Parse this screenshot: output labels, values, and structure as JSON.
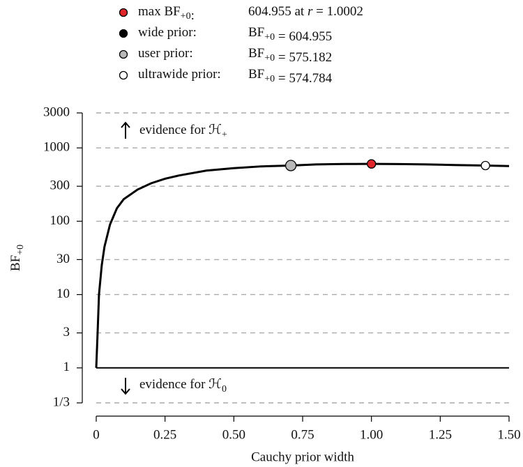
{
  "chart_data": {
    "type": "line",
    "x_label": "Cauchy prior width",
    "y_label": [
      {
        "text": "BF"
      },
      {
        "sub": "+0"
      }
    ],
    "log_y": true,
    "grid": true,
    "reference_line": 1,
    "xlim": [
      0,
      1.5
    ],
    "xticks": [
      0,
      {
        "value": 0.25,
        "label": "0.25"
      },
      {
        "value": 0.5,
        "label": "0.50"
      },
      0.75,
      {
        "value": 1,
        "label": "1.00"
      },
      1.25,
      {
        "value": 1.5,
        "label": "1.50"
      }
    ],
    "ylim": [
      0.3333333,
      3000
    ],
    "yticks": [
      3000,
      1000,
      300,
      100,
      30,
      10,
      3,
      1,
      {
        "value": 0.3333333,
        "label": "1/3"
      }
    ],
    "x": [
      0,
      0.005,
      0.01,
      0.02,
      0.03,
      0.05,
      0.075,
      0.1,
      0.15,
      0.2,
      0.25,
      0.3,
      0.4,
      0.5,
      0.6,
      0.7071,
      0.8,
      0.9,
      1.0002,
      1.1,
      1.2,
      1.3,
      1.4142,
      1.5
    ],
    "series": [
      {
        "color": "#000000",
        "values": [
          1,
          3,
          10,
          25,
          45,
          90,
          150,
          200,
          270,
          330,
          380,
          420,
          490,
          530,
          560,
          575.182,
          595,
          603,
          604.955,
          602,
          595,
          585,
          574.784,
          565
        ]
      }
    ],
    "annotations": [
      {
        "direction": "up",
        "parts": [
          {
            "text": "evidence for "
          },
          {
            "text": "ℋ"
          },
          {
            "sub": "+"
          }
        ]
      },
      {
        "direction": "down",
        "parts": [
          {
            "text": "evidence for "
          },
          {
            "text": "ℋ"
          },
          {
            "sub": "0"
          }
        ]
      }
    ],
    "legend": [
      {
        "color": "#e0262b",
        "x": 1,
        "y": 604.955,
        "label": [
          {
            "text": "max BF"
          },
          {
            "sub": "+0"
          },
          {
            "text": ":"
          }
        ],
        "value": [
          {
            "text": "604.955 at "
          },
          {
            "italic": "r"
          },
          {
            "text": " = 1.0002"
          }
        ]
      },
      {
        "color": "#000000",
        "x": 1,
        "y": 604.955,
        "label": [
          {
            "text": "wide prior:"
          }
        ],
        "value": [
          {
            "text": "BF"
          },
          {
            "sub": "+0"
          },
          {
            "text": " = 604.955"
          }
        ]
      },
      {
        "color": "#b8b8b8",
        "x": 0.7071,
        "y": 575.182,
        "label": [
          {
            "text": "user prior:"
          }
        ],
        "value": [
          {
            "text": "BF"
          },
          {
            "sub": "+0"
          },
          {
            "text": " = 575.182"
          }
        ]
      },
      {
        "color": "#ffffff",
        "x": 1.4142,
        "y": 574.784,
        "label": [
          {
            "text": "ultrawide prior:"
          }
        ],
        "value": [
          {
            "text": "BF"
          },
          {
            "sub": "+0"
          },
          {
            "text": " = 574.784"
          }
        ]
      }
    ]
  }
}
